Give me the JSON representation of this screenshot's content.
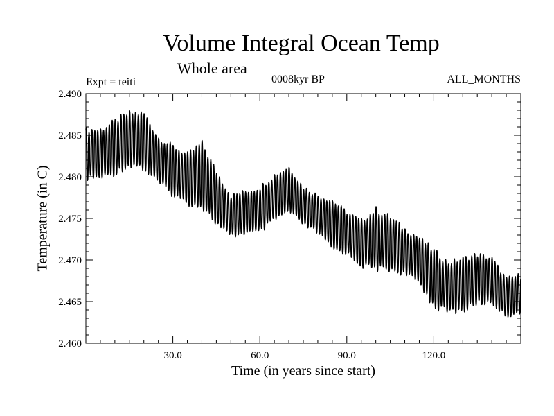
{
  "chart_data": {
    "type": "line",
    "title": "Volume Integral Ocean Temp",
    "subtitle": "Whole area",
    "left_label": "Expt = teiti",
    "center_label": "0008kyr BP",
    "right_label": "ALL_MONTHS",
    "xlabel": "Time (in years since start)",
    "ylabel": "Temperature (in C)",
    "xlim": [
      0,
      150
    ],
    "ylim": [
      2.46,
      2.49
    ],
    "xticks": [
      {
        "value": 30,
        "label": "30.0"
      },
      {
        "value": 60,
        "label": "60.0"
      },
      {
        "value": 90,
        "label": "90.0"
      },
      {
        "value": 120,
        "label": "120.0"
      }
    ],
    "yticks": [
      {
        "value": 2.46,
        "label": "2.460"
      },
      {
        "value": 2.465,
        "label": "2.465"
      },
      {
        "value": 2.47,
        "label": "2.470"
      },
      {
        "value": 2.475,
        "label": "2.475"
      },
      {
        "value": 2.48,
        "label": "2.480"
      },
      {
        "value": 2.485,
        "label": "2.485"
      },
      {
        "value": 2.49,
        "label": "2.490"
      }
    ],
    "series": [
      {
        "name": "Volume integral ocean temperature",
        "seasonal_cycle_period_years": 1,
        "annual_envelope": {
          "year": [
            0,
            5,
            10,
            12,
            15,
            18,
            20,
            25,
            30,
            35,
            40,
            45,
            50,
            55,
            60,
            65,
            70,
            75,
            80,
            85,
            90,
            95,
            100,
            105,
            110,
            115,
            120,
            125,
            130,
            135,
            140,
            145,
            150
          ],
          "max": [
            2.486,
            2.486,
            2.487,
            2.4875,
            2.488,
            2.488,
            2.488,
            2.485,
            2.484,
            2.483,
            2.4845,
            2.481,
            2.478,
            2.4785,
            2.479,
            2.4805,
            2.4815,
            2.479,
            2.478,
            2.4775,
            2.476,
            2.475,
            2.4765,
            2.4755,
            2.474,
            2.473,
            2.4715,
            2.47,
            2.4705,
            2.471,
            2.4705,
            2.468,
            2.4685
          ],
          "min": [
            2.4795,
            2.4795,
            2.48,
            2.4805,
            2.481,
            2.481,
            2.4805,
            2.479,
            2.4775,
            2.4765,
            2.476,
            2.474,
            2.4725,
            2.473,
            2.473,
            2.4745,
            2.4755,
            2.474,
            2.473,
            2.471,
            2.4705,
            2.469,
            2.4685,
            2.4685,
            2.468,
            2.467,
            2.464,
            2.4635,
            2.4635,
            2.4645,
            2.4645,
            2.463,
            2.4635
          ]
        }
      }
    ]
  }
}
